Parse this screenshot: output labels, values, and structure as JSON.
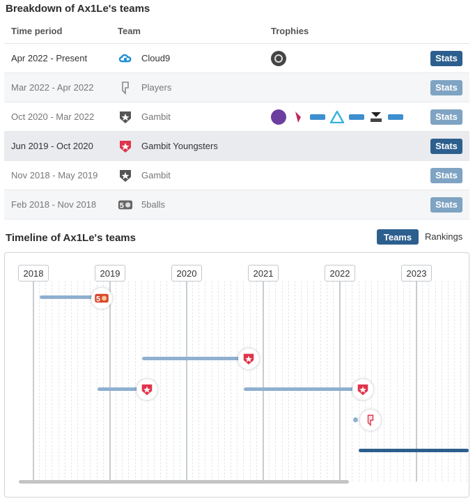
{
  "breakdown": {
    "title": "Breakdown of Ax1Le's teams",
    "headers": {
      "period": "Time period",
      "team": "Team",
      "trophies": "Trophies"
    },
    "rows": [
      {
        "period": "Apr 2022 - Present",
        "team": "Cloud9",
        "stats": "Stats"
      },
      {
        "period": "Mar 2022 - Apr 2022",
        "team": "Players",
        "stats": "Stats"
      },
      {
        "period": "Oct 2020 - Mar 2022",
        "team": "Gambit",
        "stats": "Stats"
      },
      {
        "period": "Jun 2019 - Oct 2020",
        "team": "Gambit Youngsters",
        "stats": "Stats"
      },
      {
        "period": "Nov 2018 - May 2019",
        "team": "Gambit",
        "stats": "Stats"
      },
      {
        "period": "Feb 2018 - Nov 2018",
        "team": "5balls",
        "stats": "Stats"
      }
    ]
  },
  "timeline": {
    "title": "Timeline of Ax1Le's teams",
    "toggle": {
      "teams": "Teams",
      "rankings": "Rankings"
    },
    "years": [
      "2018",
      "2019",
      "2020",
      "2021",
      "2022",
      "2023"
    ]
  },
  "icons": {
    "cloud9": "cloud9-logo-icon",
    "players": "players-logo-icon",
    "gambit": "gambit-logo-icon",
    "gambit_youngsters": "gambit-youngsters-logo-icon",
    "fiveballs": "5balls-logo-icon"
  },
  "colors": {
    "accent": "#2d5f8e",
    "accent_faded": "#7fa3c2",
    "bar": "#8fb0d0",
    "gambit_red": "#e0344a"
  }
}
